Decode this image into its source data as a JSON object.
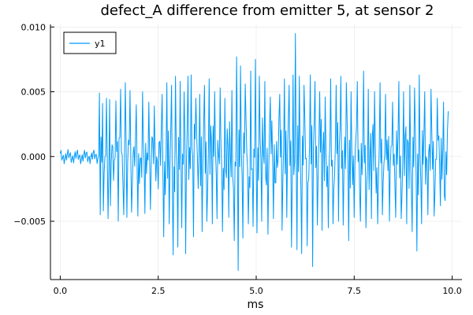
{
  "chart_data": {
    "type": "line",
    "title": "defect_A difference from emitter 5, at sensor 2",
    "xlabel": "ms",
    "ylabel": "",
    "xlim": [
      -0.25,
      10.25
    ],
    "ylim": [
      -0.0095,
      0.0102
    ],
    "xticks": [
      0.0,
      2.5,
      5.0,
      7.5,
      10.0
    ],
    "xtick_labels": [
      "0.0",
      "2.5",
      "5.0",
      "7.5",
      "10.0"
    ],
    "yticks": [
      -0.005,
      0.0,
      0.005,
      0.01
    ],
    "ytick_labels": [
      "−0.005",
      "0.000",
      "0.005",
      "0.010"
    ],
    "grid": true,
    "legend_position": "top-left",
    "series": [
      {
        "name": "y1",
        "color": "#009AFA",
        "x_start": 0.0,
        "x_step": 0.02,
        "peaks": [
          [
            1.0,
            0.0049
          ],
          [
            1.02,
            -0.0045
          ],
          [
            1.08,
            0.0041
          ],
          [
            1.1,
            -0.0042
          ],
          [
            1.18,
            0.0045
          ],
          [
            1.22,
            -0.0048
          ],
          [
            1.26,
            0.0044
          ],
          [
            1.28,
            -0.0038
          ],
          [
            1.42,
            0.0043
          ],
          [
            1.48,
            -0.005
          ],
          [
            1.54,
            0.0052
          ],
          [
            1.62,
            -0.0045
          ],
          [
            1.66,
            0.0057
          ],
          [
            1.7,
            -0.0047
          ],
          [
            1.78,
            0.0051
          ],
          [
            1.82,
            -0.0043
          ],
          [
            1.94,
            0.004
          ],
          [
            1.98,
            -0.0046
          ],
          [
            2.1,
            0.005
          ],
          [
            2.16,
            -0.0044
          ],
          [
            2.26,
            0.0042
          ],
          [
            2.3,
            -0.0041
          ],
          [
            2.4,
            0.0039
          ],
          [
            2.6,
            0.0048
          ],
          [
            2.64,
            -0.0062
          ],
          [
            2.72,
            0.0057
          ],
          [
            2.78,
            -0.0052
          ],
          [
            2.84,
            0.0055
          ],
          [
            2.88,
            -0.0076
          ],
          [
            2.94,
            0.0062
          ],
          [
            3.0,
            -0.007
          ],
          [
            3.06,
            0.0058
          ],
          [
            3.1,
            -0.0055
          ],
          [
            3.16,
            0.005
          ],
          [
            3.2,
            -0.0075
          ],
          [
            3.26,
            0.0062
          ],
          [
            3.34,
            0.0063
          ],
          [
            3.4,
            -0.0062
          ],
          [
            3.46,
            0.0045
          ],
          [
            3.56,
            0.0048
          ],
          [
            3.62,
            -0.0058
          ],
          [
            3.68,
            0.0055
          ],
          [
            3.74,
            -0.005
          ],
          [
            3.8,
            0.006
          ],
          [
            3.88,
            -0.0052
          ],
          [
            3.94,
            0.005
          ],
          [
            4.0,
            -0.0048
          ],
          [
            4.08,
            0.0053
          ],
          [
            4.14,
            -0.0058
          ],
          [
            4.2,
            0.0045
          ],
          [
            4.3,
            -0.0047
          ],
          [
            4.38,
            0.0051
          ],
          [
            4.44,
            -0.0065
          ],
          [
            4.5,
            0.0077
          ],
          [
            4.54,
            -0.0088
          ],
          [
            4.6,
            0.007
          ],
          [
            4.66,
            -0.0063
          ],
          [
            4.72,
            0.0056
          ],
          [
            4.8,
            -0.0052
          ],
          [
            4.86,
            0.0066
          ],
          [
            4.92,
            -0.0054
          ],
          [
            4.98,
            0.0075
          ],
          [
            5.02,
            -0.0059
          ],
          [
            5.08,
            0.0062
          ],
          [
            5.14,
            -0.005
          ],
          [
            5.22,
            0.0058
          ],
          [
            5.3,
            -0.006
          ],
          [
            5.36,
            0.0046
          ],
          [
            5.44,
            -0.0048
          ],
          [
            5.6,
            0.0048
          ],
          [
            5.66,
            -0.0057
          ],
          [
            5.72,
            0.006
          ],
          [
            5.78,
            -0.0047
          ],
          [
            5.84,
            0.0055
          ],
          [
            5.9,
            -0.007
          ],
          [
            5.94,
            0.0063
          ],
          [
            6.0,
            0.0095
          ],
          [
            6.04,
            -0.0072
          ],
          [
            6.1,
            0.0062
          ],
          [
            6.16,
            -0.0075
          ],
          [
            6.22,
            0.0055
          ],
          [
            6.3,
            -0.0069
          ],
          [
            6.38,
            0.0063
          ],
          [
            6.44,
            -0.0085
          ],
          [
            6.5,
            0.0058
          ],
          [
            6.56,
            -0.0053
          ],
          [
            6.62,
            0.005
          ],
          [
            6.68,
            -0.0057
          ],
          [
            6.76,
            0.0046
          ],
          [
            6.84,
            -0.0055
          ],
          [
            6.9,
            0.006
          ],
          [
            6.96,
            -0.0052
          ],
          [
            7.04,
            0.0055
          ],
          [
            7.1,
            -0.005
          ],
          [
            7.16,
            0.0062
          ],
          [
            7.22,
            -0.0053
          ],
          [
            7.3,
            0.0057
          ],
          [
            7.36,
            -0.0065
          ],
          [
            7.42,
            0.005
          ],
          [
            7.5,
            -0.0047
          ],
          [
            7.58,
            0.0058
          ],
          [
            7.66,
            -0.005
          ],
          [
            7.74,
            0.0066
          ],
          [
            7.8,
            -0.0055
          ],
          [
            7.86,
            0.0052
          ],
          [
            7.94,
            -0.0048
          ],
          [
            8.02,
            0.005
          ],
          [
            8.1,
            -0.0052
          ],
          [
            8.16,
            0.0057
          ],
          [
            8.22,
            -0.0045
          ],
          [
            8.3,
            0.0048
          ],
          [
            8.4,
            -0.005
          ],
          [
            8.48,
            0.0042
          ],
          [
            8.56,
            -0.0047
          ],
          [
            8.64,
            0.0058
          ],
          [
            8.7,
            -0.0048
          ],
          [
            8.76,
            0.005
          ],
          [
            8.84,
            -0.0052
          ],
          [
            8.92,
            0.0055
          ],
          [
            8.98,
            -0.0058
          ],
          [
            9.04,
            0.0053
          ],
          [
            9.1,
            -0.0073
          ],
          [
            9.16,
            0.0063
          ],
          [
            9.22,
            -0.0052
          ],
          [
            9.3,
            0.005
          ],
          [
            9.38,
            -0.0045
          ],
          [
            9.46,
            0.0052
          ],
          [
            9.54,
            -0.0046
          ],
          [
            9.62,
            0.0045
          ],
          [
            9.7,
            -0.0038
          ],
          [
            9.78,
            0.0042
          ],
          [
            9.82,
            -0.0034
          ],
          [
            9.9,
            0.0035
          ]
        ]
      }
    ]
  }
}
